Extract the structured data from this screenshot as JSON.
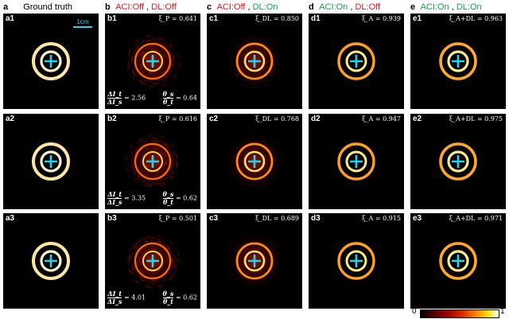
{
  "headers": {
    "a": {
      "letter": "a",
      "title": "Ground truth"
    },
    "b": {
      "letter": "b",
      "aci": "ACI:Off",
      "sep": ",",
      "dl": "DL:Off"
    },
    "c": {
      "letter": "c",
      "aci": "ACI:Off",
      "sep": ",",
      "dl": "DL:On"
    },
    "d": {
      "letter": "d",
      "aci": "ACI:On",
      "sep": ",",
      "dl": "DL:Off"
    },
    "e": {
      "letter": "e",
      "aci": "ACI:On",
      "sep": ",",
      "dl": "DL:On"
    }
  },
  "scalebar": "1cm",
  "panels": {
    "a1": {
      "label": "a1"
    },
    "a2": {
      "label": "a2"
    },
    "a3": {
      "label": "a3"
    },
    "b1": {
      "label": "b1",
      "xi": "ξ_P = 0.641",
      "dI_top": "ΔI_t",
      "dI_bot": "ΔI_s",
      "dI_val": "= 2.56",
      "th_top": "θ_s",
      "th_bot": "θ_t",
      "th_val": "= 0.64"
    },
    "b2": {
      "label": "b2",
      "xi": "ξ_P = 0.616",
      "dI_top": "ΔI_t",
      "dI_bot": "ΔI_s",
      "dI_val": "= 3.35",
      "th_top": "θ_s",
      "th_bot": "θ_t",
      "th_val": "= 0.62"
    },
    "b3": {
      "label": "b3",
      "xi": "ξ_P = 0.501",
      "dI_top": "ΔI_t",
      "dI_bot": "ΔI_s",
      "dI_val": "= 4.01",
      "th_top": "θ_s",
      "th_bot": "θ_t",
      "th_val": "= 0.62"
    },
    "c1": {
      "label": "c1",
      "xi": "ξ_DL = 0.850"
    },
    "c2": {
      "label": "c2",
      "xi": "ξ_DL = 0.768"
    },
    "c3": {
      "label": "c3",
      "xi": "ξ_DL = 0.689"
    },
    "d1": {
      "label": "d1",
      "xi": "ξ_A = 0.939"
    },
    "d2": {
      "label": "d2",
      "xi": "ξ_A = 0.947"
    },
    "d3": {
      "label": "d3",
      "xi": "ξ_A = 0.915"
    },
    "e1": {
      "label": "e1",
      "xi": "ξ_A+DL = 0.963"
    },
    "e2": {
      "label": "e2",
      "xi": "ξ_A+DL = 0.975"
    },
    "e3": {
      "label": "e3",
      "xi": "ξ_A+DL = 0.971"
    }
  },
  "colorbar": {
    "min": "0",
    "max": "1",
    "colormap": "hot"
  }
}
